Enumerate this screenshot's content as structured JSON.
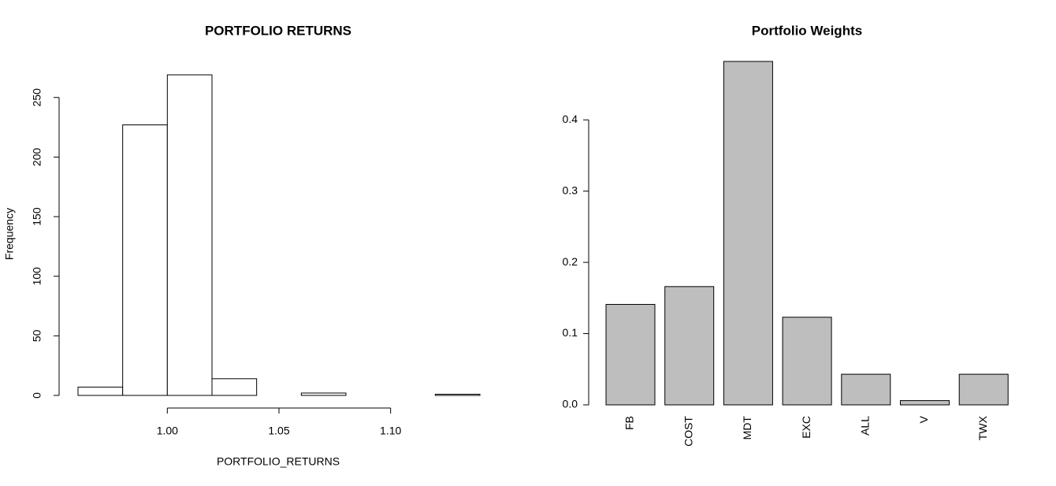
{
  "chart_data": [
    {
      "type": "histogram",
      "title": "PORTFOLIO RETURNS",
      "x_label": "PORTFOLIO_RETURNS",
      "y_label": "Frequency",
      "bins": [
        0.96,
        0.98,
        1.0,
        1.02,
        1.04,
        1.06,
        1.08,
        1.1,
        1.12,
        1.14
      ],
      "values": [
        7,
        227,
        269,
        14,
        0,
        2,
        0,
        0,
        1
      ],
      "color": "#ffffff",
      "xlim": [
        0.96,
        1.14
      ],
      "xticks": [
        {
          "value": 1.0,
          "label": "1.00"
        },
        1.05,
        {
          "value": 1.1,
          "label": "1.10"
        }
      ],
      "ylim": [
        0,
        269
      ],
      "yticks": [
        0,
        50,
        100,
        150,
        200,
        250
      ]
    },
    {
      "type": "bar",
      "title": "Portfolio Weights",
      "categories": [
        "FB",
        "COST",
        "MDT",
        "EXC",
        "ALL",
        "V",
        "TWX"
      ],
      "values": [
        0.141,
        0.166,
        0.482,
        0.123,
        0.043,
        0.006,
        0.043
      ],
      "color": "#bebebe",
      "ylim": [
        0,
        0.482
      ],
      "yticks": [
        {
          "value": 0,
          "label": "0.0"
        },
        0.1,
        0.2,
        0.3,
        0.4
      ]
    }
  ]
}
